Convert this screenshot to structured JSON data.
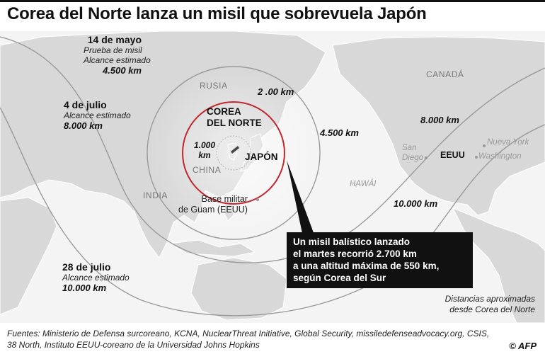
{
  "title": "Corea del Norte lanza un misil que sobrevuela Japón",
  "events": [
    {
      "date": "14 de mayo",
      "line1": "Prueba de misil",
      "line2": "Alcance estimado",
      "range": "4.500 km"
    },
    {
      "date": "4 de julio",
      "line1": "Alcance estimado",
      "range": "8.000 km"
    },
    {
      "date": "28 de julio",
      "line1": "Alcance estimado",
      "range": "10.000 km"
    }
  ],
  "rings": {
    "r1000": "1.000\nkm",
    "r2000": "2 .00 km",
    "r4500": "4.500 km",
    "r8000": "8.000 km",
    "r10000": "10.000 km",
    "accent": "#c0282e"
  },
  "places": {
    "north_korea": "COREA\nDEL NORTE",
    "japan": "JAPÓN",
    "russia": "RUSIA",
    "china": "CHINA",
    "india": "INDIA",
    "canada": "CANADÁ",
    "usa": "EEUU",
    "guam": "Base militar\nde Guam (EEUU)",
    "hawaii": "HAWÁI",
    "san_diego": "San\nDiego",
    "new_york": "Nueva York",
    "washington": "Washington"
  },
  "callout": "Un misil balístico lanzado\nel martes recorrió 2.700 km\na una altitud máxima de 550 km,\nsegún Corea del Sur",
  "note": "Distancias aproximadas\ndesde Corea del Norte",
  "sources": "Fuentes: Ministerio de Defensa surcoreano, KCNA, NuclearThreat Initiative, Global Security, missiledefenseadvocacy.org, CSIS,\n38 North, Instituto EEUU-coreano de la Universidad Johns Hopkins",
  "credit": "© AFP"
}
